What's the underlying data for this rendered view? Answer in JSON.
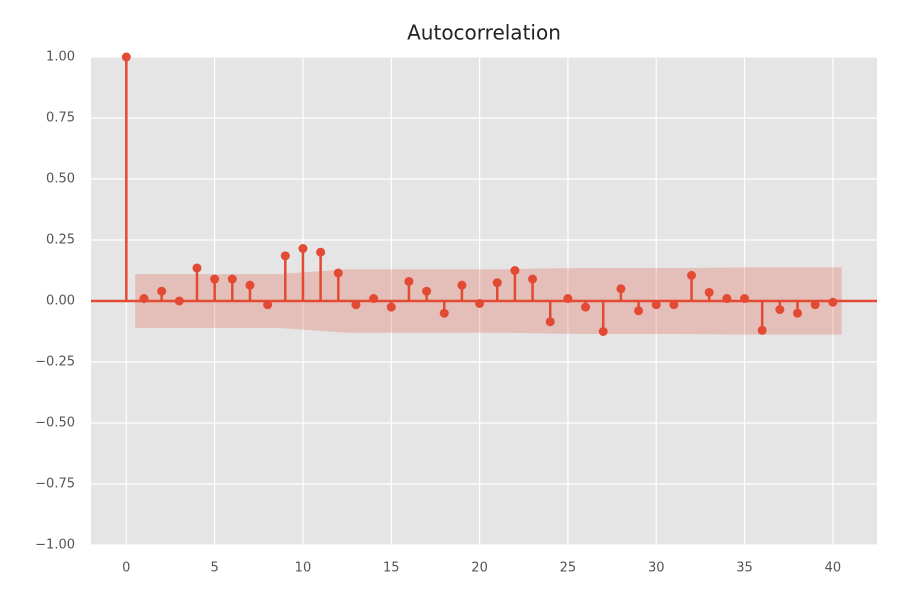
{
  "chart_data": {
    "type": "stem",
    "title": "Autocorrelation",
    "x": [
      0,
      1,
      2,
      3,
      4,
      5,
      6,
      7,
      8,
      9,
      10,
      11,
      12,
      13,
      14,
      15,
      16,
      17,
      18,
      19,
      20,
      21,
      22,
      23,
      24,
      25,
      26,
      27,
      28,
      29,
      30,
      31,
      32,
      33,
      34,
      35,
      36,
      37,
      38,
      39,
      40
    ],
    "values": [
      1.0,
      0.01,
      0.04,
      0.0,
      0.135,
      0.09,
      0.09,
      0.065,
      -0.015,
      0.185,
      0.215,
      0.2,
      0.115,
      -0.015,
      0.01,
      -0.025,
      0.08,
      0.04,
      -0.05,
      0.065,
      -0.01,
      0.075,
      0.125,
      0.09,
      -0.085,
      0.01,
      -0.025,
      -0.125,
      0.05,
      -0.04,
      -0.015,
      -0.015,
      0.105,
      0.035,
      0.01,
      0.01,
      -0.12,
      -0.035,
      -0.05,
      -0.015,
      -0.005
    ],
    "color": "#e24a33",
    "band": {
      "x": [
        0.5,
        8.5,
        9.5,
        10.5,
        11.5,
        12.5,
        21.5,
        23.5,
        26.5,
        31.5,
        35.5,
        40.5
      ],
      "upper": [
        0.11,
        0.11,
        0.115,
        0.12,
        0.125,
        0.13,
        0.13,
        0.133,
        0.135,
        0.135,
        0.138,
        0.138
      ],
      "lower": [
        -0.11,
        -0.11,
        -0.115,
        -0.12,
        -0.125,
        -0.13,
        -0.13,
        -0.133,
        -0.135,
        -0.135,
        -0.138,
        -0.138
      ],
      "color": "#e24a33",
      "opacity": 0.25
    },
    "xlim": [
      -2,
      42.5
    ],
    "ylim": [
      -1,
      1
    ],
    "xticks": [
      0,
      5,
      10,
      15,
      20,
      25,
      30,
      35,
      40
    ],
    "yticks": [
      {
        "value": 1,
        "label": "1.00"
      },
      {
        "value": 0.75,
        "label": "0.75"
      },
      {
        "value": 0.5,
        "label": "0.50"
      },
      {
        "value": 0.25,
        "label": "0.25"
      },
      {
        "value": 0,
        "label": "0.00"
      },
      {
        "value": -0.25,
        "label": "−0.25"
      },
      {
        "value": -0.5,
        "label": "−0.50"
      },
      {
        "value": -0.75,
        "label": "−0.75"
      },
      {
        "value": -1,
        "label": "−1.00"
      }
    ],
    "grid": true
  }
}
